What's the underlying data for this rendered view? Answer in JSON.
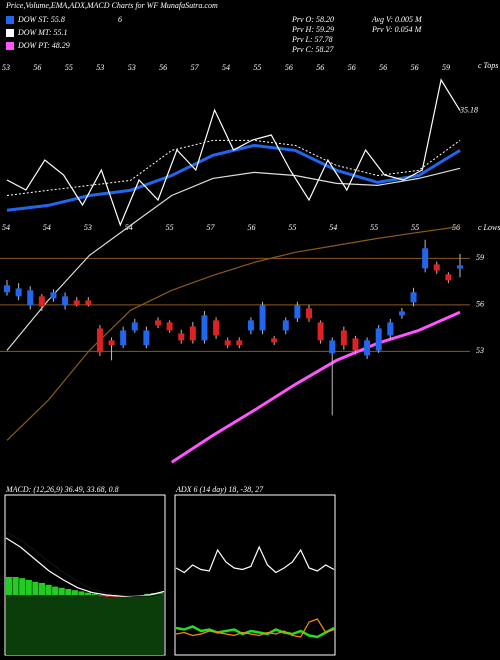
{
  "header": {
    "title": "Price,Volume,EMA,ADX,MACD Charts for WF MunafaSutra.com",
    "legend": [
      {
        "label": "DOW ST: 55.8",
        "color": "#2266ee"
      },
      {
        "label": "DOW MT: 55.1",
        "color": "#ffffff"
      },
      {
        "label": "DOW PT: 48.29",
        "color": "#ff55ff"
      }
    ],
    "legend_note": "6",
    "stats": [
      "Prv  O: 58.20",
      "Prv  H: 59.29",
      "Prv  L: 57.78",
      "Prv  C: 58.27",
      "Avg V: 0.005 M",
      "Prv  V: 0.054  M"
    ]
  },
  "chart_data": [
    {
      "type": "candlestick",
      "ylim": [
        44.7,
        71.8
      ],
      "y2lim": [
        0,
        40
      ],
      "tops_label": "c Tops",
      "lows_label": "c Lows",
      "tops": [
        "53",
        "56",
        "55",
        "53",
        "53",
        "56",
        "57",
        "54",
        "55",
        "56",
        "56",
        "56",
        "56",
        "56",
        "59"
      ],
      "lows": [
        "54",
        "54",
        "53",
        "54",
        "55",
        "57",
        "56",
        "55",
        "54",
        "55",
        "55",
        "56"
      ],
      "levels": [
        59,
        56,
        53
      ],
      "level_color": "#8a5a1a",
      "up_color": "#2266ee",
      "down_color": "#dd2222",
      "open": [
        56.81,
        56.55,
        55.97,
        56.55,
        56.42,
        55.97,
        56.29,
        56.29,
        54.48,
        53.71,
        53.39,
        54.35,
        53.39,
        55.0,
        54.87,
        54.16,
        54.61,
        53.71,
        55.0,
        53.71,
        53.71,
        54.35,
        54.35,
        53.84,
        54.35,
        55.13,
        55.77,
        54.87,
        52.87,
        54.35,
        53.84,
        52.74,
        53.06,
        54.03,
        55.32,
        56.16,
        58.35,
        58.61,
        57.97,
        58.35
      ],
      "close": [
        57.26,
        57.06,
        56.94,
        55.9,
        56.81,
        56.55,
        56.0,
        56.0,
        52.94,
        53.39,
        54.35,
        54.87,
        54.35,
        54.68,
        54.35,
        53.71,
        53.71,
        55.32,
        54.03,
        53.39,
        53.39,
        55.0,
        55.97,
        53.58,
        55.0,
        55.97,
        55.13,
        53.71,
        53.71,
        53.39,
        53.06,
        53.71,
        54.48,
        54.87,
        55.58,
        56.81,
        59.65,
        58.22,
        57.58,
        58.55
      ],
      "high": [
        57.6,
        57.4,
        57.2,
        56.7,
        57.0,
        56.8,
        56.5,
        56.5,
        54.7,
        53.9,
        54.6,
        55.1,
        54.6,
        55.2,
        55.0,
        54.4,
        54.9,
        55.6,
        55.2,
        53.9,
        53.9,
        55.2,
        56.2,
        54.0,
        55.2,
        56.2,
        56.0,
        55.0,
        53.9,
        54.6,
        54.0,
        53.9,
        54.7,
        55.1,
        55.8,
        57.1,
        60.2,
        58.8,
        58.1,
        59.29
      ],
      "low": [
        56.6,
        56.3,
        55.7,
        55.6,
        56.2,
        55.7,
        55.9,
        55.9,
        52.7,
        52.42,
        53.2,
        54.2,
        53.2,
        54.5,
        54.2,
        53.5,
        53.5,
        53.5,
        53.8,
        53.2,
        53.2,
        54.1,
        54.1,
        53.4,
        54.1,
        54.9,
        54.9,
        53.5,
        48.87,
        53.1,
        52.8,
        52.5,
        52.9,
        53.8,
        55.1,
        55.9,
        58.1,
        58.0,
        57.4,
        57.78
      ],
      "series": [
        {
          "name": "ema-long",
          "color": "#8a5a1a",
          "values": [
            47.26,
            49.84,
            53.06,
            55.65,
            56.94,
            57.9,
            58.74,
            59.39,
            59.84,
            60.29,
            60.68,
            61.06
          ]
        },
        {
          "name": "ema-mid",
          "color": "#dddddd",
          "values": [
            53.06,
            56.29,
            59.19,
            61.13,
            63.06,
            64.16,
            64.55,
            64.35,
            63.84,
            63.71,
            64.16,
            64.81
          ]
        },
        {
          "name": "ema-pt",
          "color": "#ff55ff",
          "values": [
            null,
            null,
            null,
            null,
            45.84,
            47.58,
            49.19,
            50.87,
            52.42,
            53.52,
            54.35,
            55.52
          ]
        },
        {
          "name": "ema-st",
          "color": "#2266ee",
          "values": [
            62.1,
            62.42,
            63.06,
            63.39,
            64.35,
            65.65,
            66.29,
            65.97,
            64.68,
            63.9,
            64.35,
            65.97
          ]
        },
        {
          "name": "ema-dot",
          "color": "#ffffff",
          "values": [
            63.06,
            63.39,
            63.71,
            64.03,
            65.97,
            66.61,
            66.61,
            66.29,
            65.0,
            64.35,
            64.68,
            66.61
          ]
        },
        {
          "name": "price-line",
          "color": "#ffffff",
          "axis": "y2",
          "values": [
            28.57,
            27.62,
            30.48,
            29.05,
            26.19,
            29.52,
            24.29,
            28.57,
            26.67,
            31.43,
            29.52,
            35.24,
            31.43,
            32.38,
            32.86,
            29.52,
            26.67,
            30.48,
            27.62,
            31.43,
            29.05,
            28.57,
            29.52,
            38.1,
            35.18
          ],
          "value_labels_last": "35.18"
        }
      ]
    },
    {
      "type": "macd",
      "title": "MACD: (12,26,9) 36.49, 33.68, 0.8",
      "ylim": [
        -1,
        1.5
      ],
      "series": [
        {
          "name": "macd",
          "color": "#ffffff",
          "values": [
            0.95,
            0.8,
            0.6,
            0.4,
            0.25,
            0.12,
            0.04,
            0.0,
            -0.02,
            -0.02,
            0.0,
            0.06
          ]
        },
        {
          "name": "signal",
          "color": "#111111",
          "values": [
            1.05,
            0.92,
            0.74,
            0.55,
            0.38,
            0.22,
            0.1,
            0.03,
            0.0,
            -0.02,
            -0.02,
            0.02
          ]
        }
      ],
      "histogram": [
        0.3,
        0.3,
        0.28,
        0.25,
        0.22,
        0.2,
        0.17,
        0.14,
        0.12,
        0.1,
        0.08,
        0.06,
        0.04,
        0.02,
        -0.02,
        -0.03,
        -0.03,
        -0.03,
        -0.03,
        -0.02,
        -0.02,
        0.02,
        0.03,
        0.04
      ],
      "pos_color": "#22cc22",
      "neg_color": "#dd2222"
    },
    {
      "type": "adx",
      "title": "ADX  6    (14 day) 18, -38, 27",
      "ylim": [
        0,
        100
      ],
      "series": [
        {
          "name": "adx",
          "color": "#ffffff",
          "values": [
            58,
            55,
            60,
            57,
            56,
            70,
            62,
            58,
            57,
            59,
            72,
            60,
            55,
            58,
            62,
            70,
            58,
            56,
            60,
            57
          ]
        },
        {
          "name": "plus-di",
          "color": "#22dd22",
          "values": [
            18,
            17,
            19,
            16,
            17,
            15,
            16,
            17,
            14,
            16,
            15,
            14,
            17,
            15,
            14,
            16,
            13,
            12,
            15,
            18
          ]
        },
        {
          "name": "minus-di",
          "color": "#ff8800",
          "values": [
            14,
            15,
            13,
            14,
            16,
            15,
            14,
            13,
            15,
            14,
            13,
            15,
            14,
            16,
            13,
            12,
            22,
            24,
            15,
            17
          ]
        }
      ]
    }
  ]
}
